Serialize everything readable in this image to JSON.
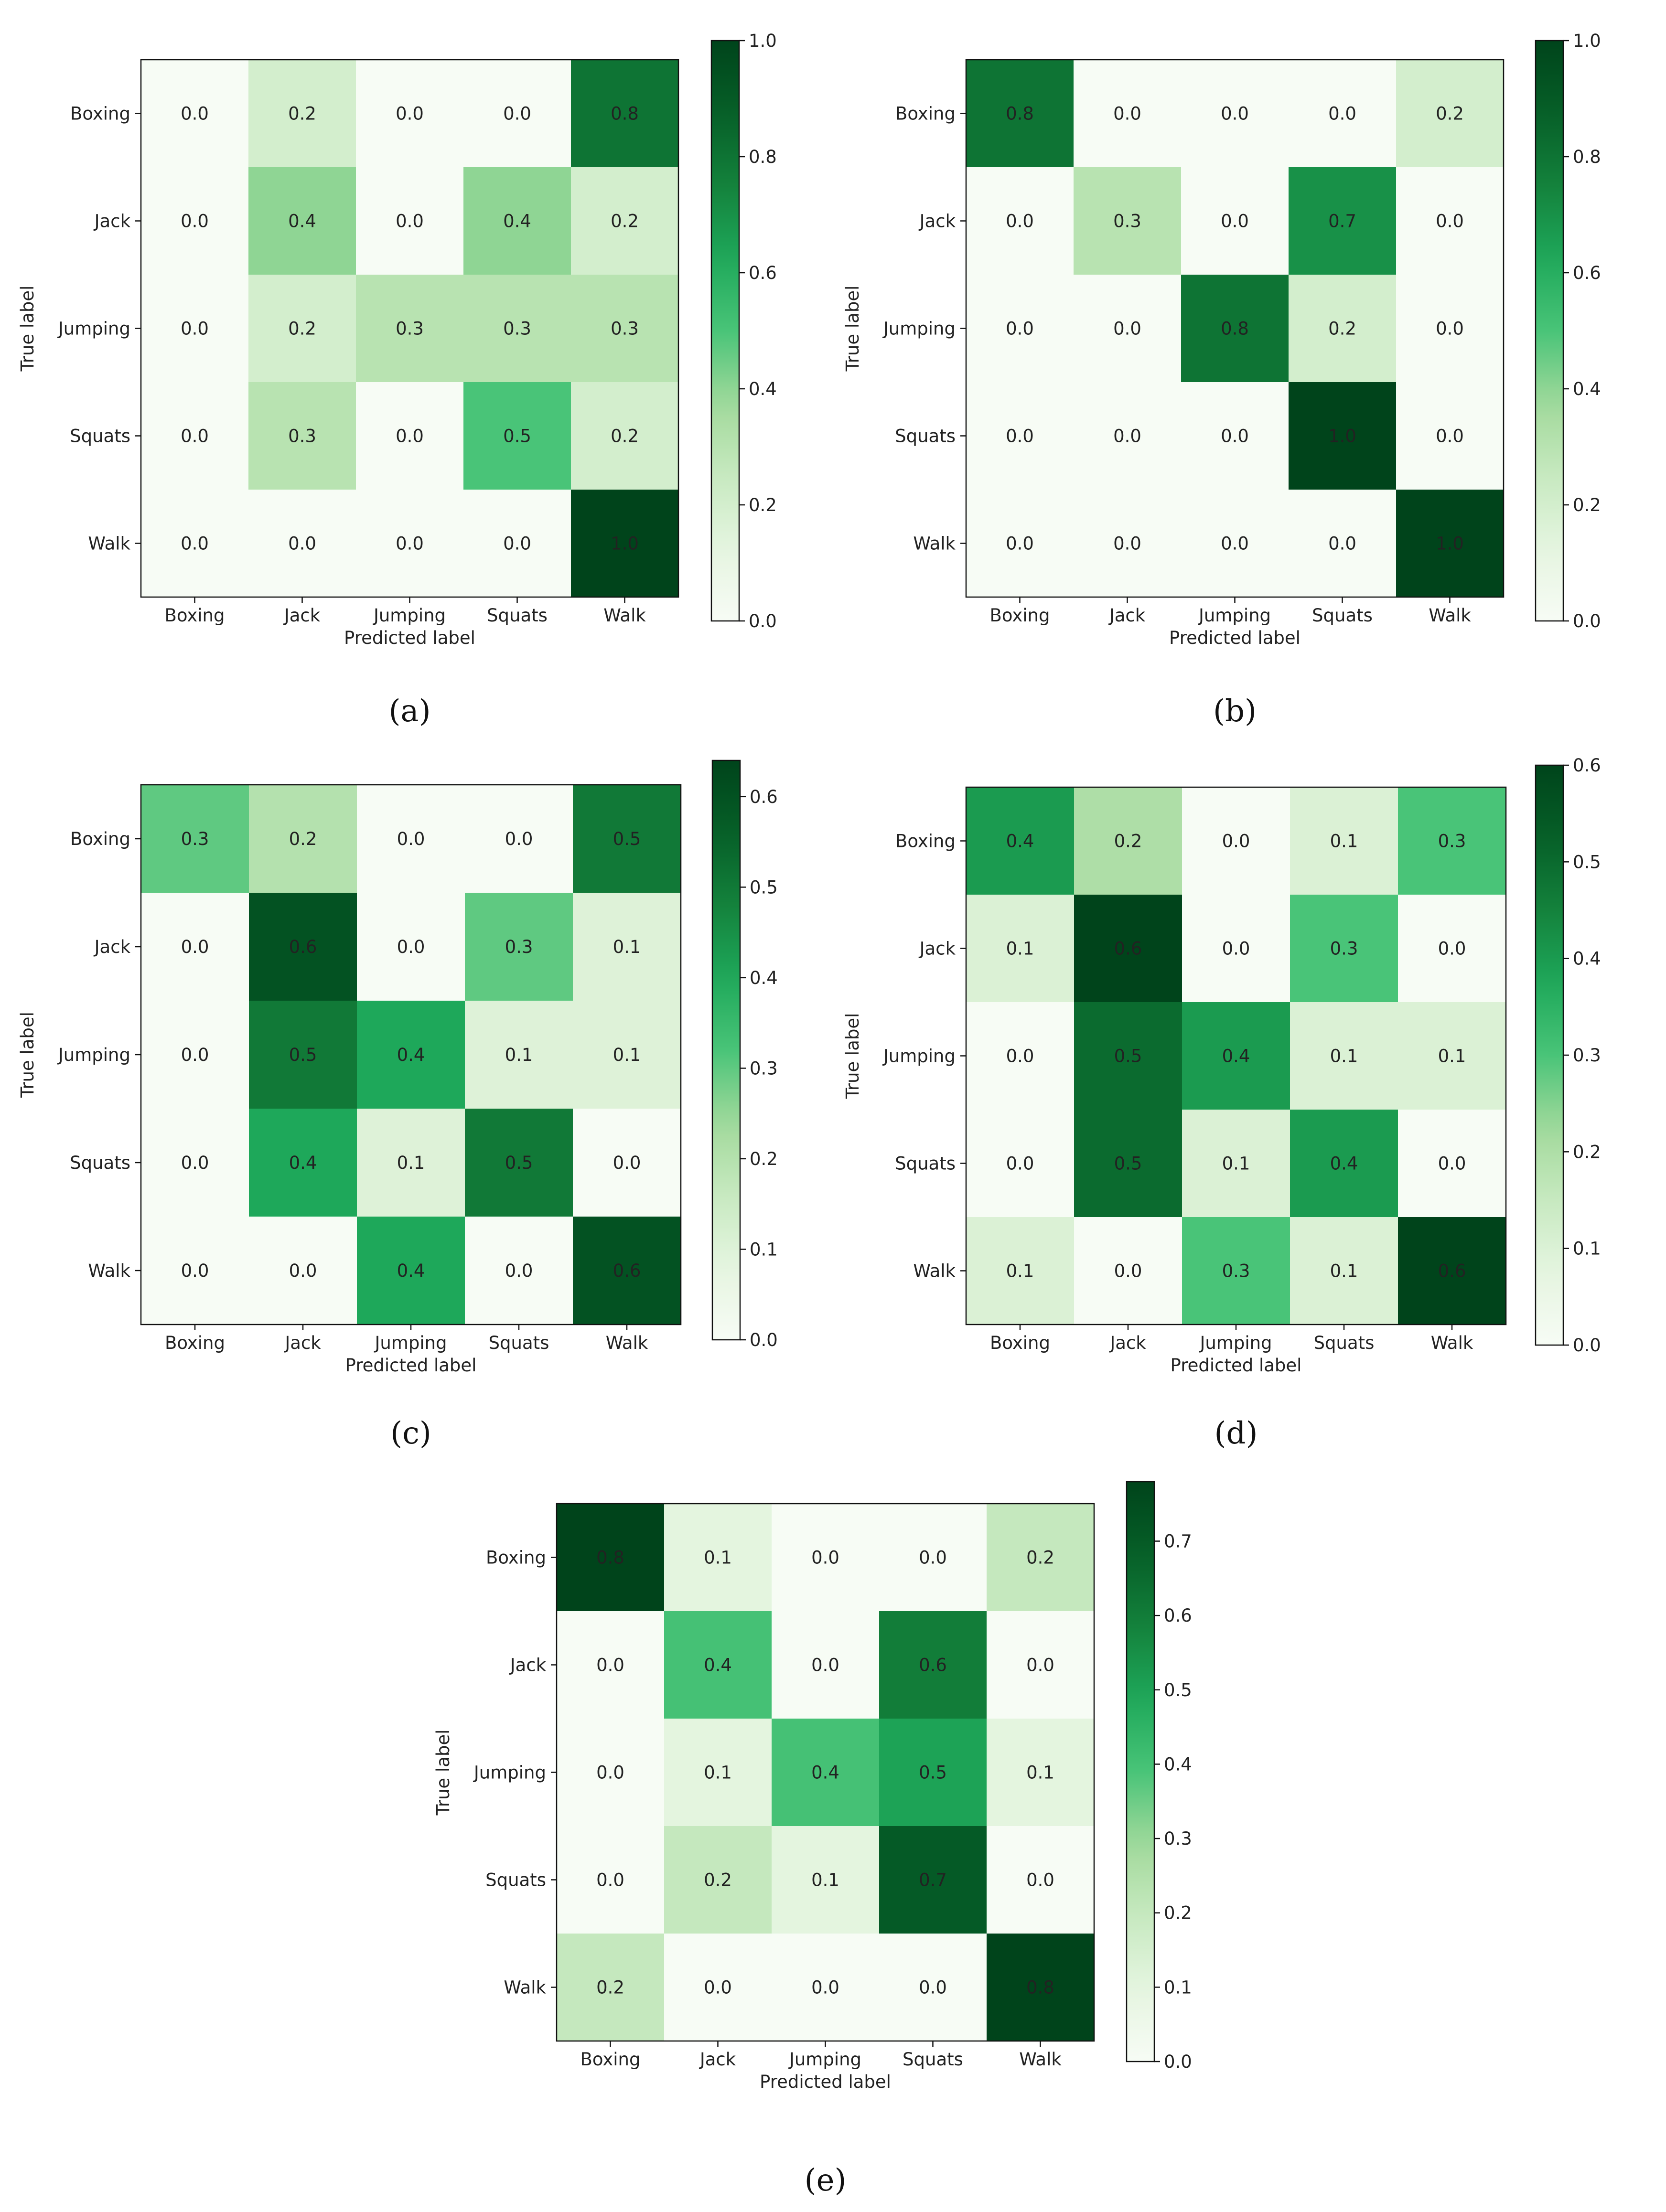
{
  "chart_data": [
    {
      "type": "heatmap",
      "panel": "a",
      "caption": "(a)",
      "xlabel": "Predicted label",
      "ylabel": "True label",
      "x_categories": [
        "Boxing",
        "Jack",
        "Jumping",
        "Squats",
        "Walk"
      ],
      "y_categories": [
        "Boxing",
        "Jack",
        "Jumping",
        "Squats",
        "Walk"
      ],
      "values": [
        [
          0.0,
          0.2,
          0.0,
          0.0,
          0.8
        ],
        [
          0.0,
          0.4,
          0.0,
          0.4,
          0.2
        ],
        [
          0.0,
          0.2,
          0.3,
          0.3,
          0.3
        ],
        [
          0.0,
          0.3,
          0.0,
          0.5,
          0.2
        ],
        [
          0.0,
          0.0,
          0.0,
          0.0,
          1.0
        ]
      ],
      "colorbar": {
        "min": 0.0,
        "max": 1.0,
        "ticks": [
          "0.0",
          "0.2",
          "0.4",
          "0.6",
          "0.8",
          "1.0"
        ],
        "tick_values": [
          0.0,
          0.2,
          0.4,
          0.6,
          0.8,
          1.0
        ]
      },
      "colormap": "Greens"
    },
    {
      "type": "heatmap",
      "panel": "b",
      "caption": "(b)",
      "xlabel": "Predicted label",
      "ylabel": "True label",
      "x_categories": [
        "Boxing",
        "Jack",
        "Jumping",
        "Squats",
        "Walk"
      ],
      "y_categories": [
        "Boxing",
        "Jack",
        "Jumping",
        "Squats",
        "Walk"
      ],
      "values": [
        [
          0.8,
          0.0,
          0.0,
          0.0,
          0.2
        ],
        [
          0.0,
          0.3,
          0.0,
          0.7,
          0.0
        ],
        [
          0.0,
          0.0,
          0.8,
          0.2,
          0.0
        ],
        [
          0.0,
          0.0,
          0.0,
          1.0,
          0.0
        ],
        [
          0.0,
          0.0,
          0.0,
          0.0,
          1.0
        ]
      ],
      "colorbar": {
        "min": 0.0,
        "max": 1.0,
        "ticks": [
          "0.0",
          "0.2",
          "0.4",
          "0.6",
          "0.8",
          "1.0"
        ],
        "tick_values": [
          0.0,
          0.2,
          0.4,
          0.6,
          0.8,
          1.0
        ]
      },
      "colormap": "Greens"
    },
    {
      "type": "heatmap",
      "panel": "c",
      "caption": "(c)",
      "xlabel": "Predicted label",
      "ylabel": "True label",
      "x_categories": [
        "Boxing",
        "Jack",
        "Jumping",
        "Squats",
        "Walk"
      ],
      "y_categories": [
        "Boxing",
        "Jack",
        "Jumping",
        "Squats",
        "Walk"
      ],
      "values": [
        [
          0.3,
          0.2,
          0.0,
          0.0,
          0.5
        ],
        [
          0.0,
          0.6,
          0.0,
          0.3,
          0.1
        ],
        [
          0.0,
          0.5,
          0.4,
          0.1,
          0.1
        ],
        [
          0.0,
          0.4,
          0.1,
          0.5,
          0.0
        ],
        [
          0.0,
          0.0,
          0.4,
          0.0,
          0.6
        ]
      ],
      "colorbar": {
        "min": 0.0,
        "max": 0.64,
        "ticks": [
          "0.0",
          "0.1",
          "0.2",
          "0.3",
          "0.4",
          "0.5",
          "0.6"
        ],
        "tick_values": [
          0.0,
          0.1,
          0.2,
          0.3,
          0.4,
          0.5,
          0.6
        ]
      },
      "colormap": "Greens"
    },
    {
      "type": "heatmap",
      "panel": "d",
      "caption": "(d)",
      "xlabel": "Predicted label",
      "ylabel": "True label",
      "x_categories": [
        "Boxing",
        "Jack",
        "Jumping",
        "Squats",
        "Walk"
      ],
      "y_categories": [
        "Boxing",
        "Jack",
        "Jumping",
        "Squats",
        "Walk"
      ],
      "values": [
        [
          0.4,
          0.2,
          0.0,
          0.1,
          0.3
        ],
        [
          0.1,
          0.6,
          0.0,
          0.3,
          0.0
        ],
        [
          0.0,
          0.5,
          0.4,
          0.1,
          0.1
        ],
        [
          0.0,
          0.5,
          0.1,
          0.4,
          0.0
        ],
        [
          0.1,
          0.0,
          0.3,
          0.1,
          0.6
        ]
      ],
      "colorbar": {
        "min": 0.0,
        "max": 0.6,
        "ticks": [
          "0.0",
          "0.1",
          "0.2",
          "0.3",
          "0.4",
          "0.5",
          "0.6"
        ],
        "tick_values": [
          0.0,
          0.1,
          0.2,
          0.3,
          0.4,
          0.5,
          0.6
        ]
      },
      "colormap": "Greens"
    },
    {
      "type": "heatmap",
      "panel": "e",
      "caption": "(e)",
      "xlabel": "Predicted label",
      "ylabel": "True label",
      "x_categories": [
        "Boxing",
        "Jack",
        "Jumping",
        "Squats",
        "Walk"
      ],
      "y_categories": [
        "Boxing",
        "Jack",
        "Jumping",
        "Squats",
        "Walk"
      ],
      "values": [
        [
          0.8,
          0.1,
          0.0,
          0.0,
          0.2
        ],
        [
          0.0,
          0.4,
          0.0,
          0.6,
          0.0
        ],
        [
          0.0,
          0.1,
          0.4,
          0.5,
          0.1
        ],
        [
          0.0,
          0.2,
          0.1,
          0.7,
          0.0
        ],
        [
          0.2,
          0.0,
          0.0,
          0.0,
          0.8
        ]
      ],
      "colorbar": {
        "min": 0.0,
        "max": 0.78,
        "ticks": [
          "0.0",
          "0.1",
          "0.2",
          "0.3",
          "0.4",
          "0.5",
          "0.6",
          "0.7"
        ],
        "tick_values": [
          0.0,
          0.1,
          0.2,
          0.3,
          0.4,
          0.5,
          0.6,
          0.7
        ]
      },
      "colormap": "Greens"
    }
  ]
}
